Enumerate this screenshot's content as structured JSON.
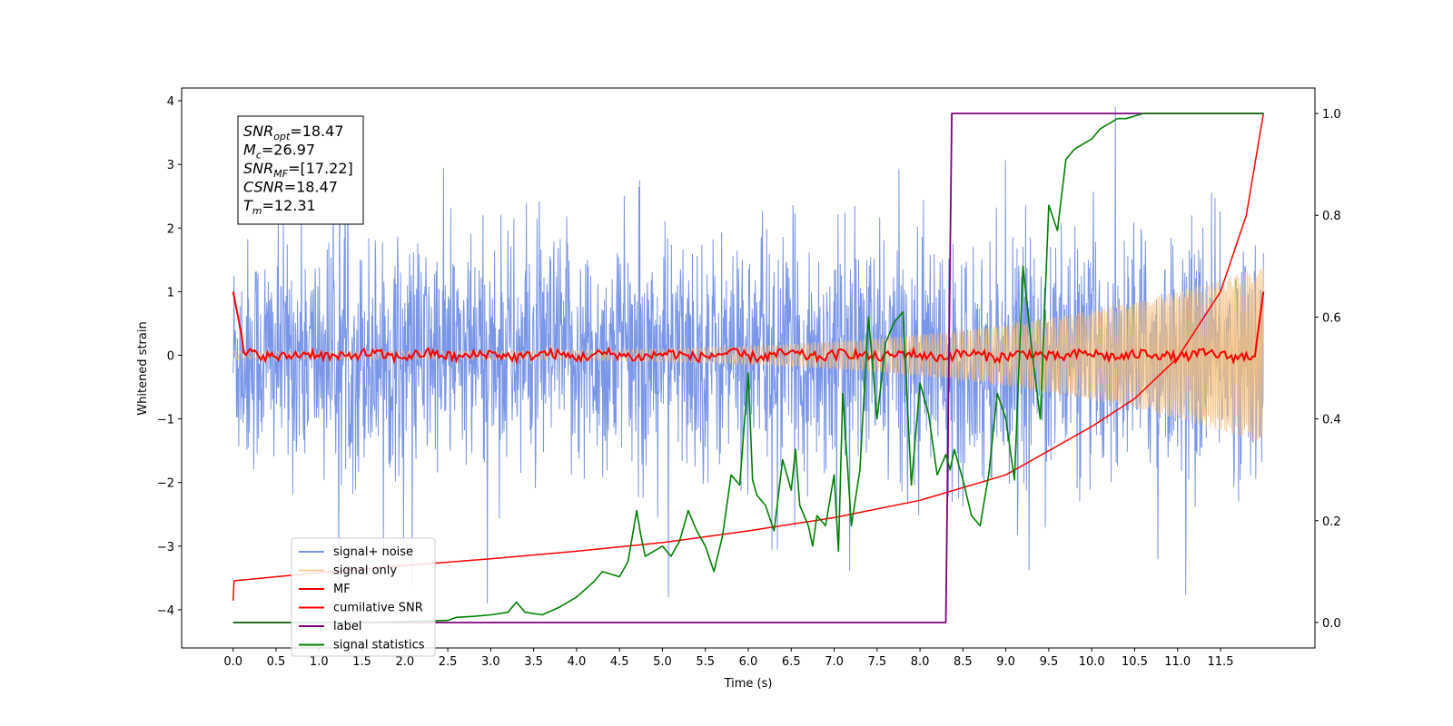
{
  "chart_data": {
    "type": "line",
    "xlabel": "Time (s)",
    "ylabel": "Whitened strain",
    "xlim": [
      -0.6,
      12.6
    ],
    "ylim": [
      -4.6,
      4.2
    ],
    "ylim_right": [
      -0.05,
      1.05
    ],
    "x_ticks": [
      "0.0",
      "0.5",
      "1.0",
      "1.5",
      "2.0",
      "2.5",
      "3.0",
      "3.5",
      "4.0",
      "4.5",
      "5.0",
      "5.5",
      "6.0",
      "6.5",
      "7.0",
      "7.5",
      "8.0",
      "8.5",
      "9.0",
      "9.5",
      "10.0",
      "10.5",
      "11.0",
      "11.5"
    ],
    "y_ticks_left": [
      "−4",
      "−3",
      "−2",
      "−1",
      "0",
      "1",
      "2",
      "3",
      "4"
    ],
    "y_ticks_right": [
      "0.0",
      "0.2",
      "0.4",
      "0.6",
      "0.8",
      "1.0"
    ],
    "grid": false,
    "legend_position": "lower-left",
    "stats_box": {
      "lines": [
        {
          "italic": "SNR",
          "sub": "opt",
          "rest": "=18.47"
        },
        {
          "italic": "M",
          "sub": "c",
          "rest": "=26.97"
        },
        {
          "italic": "SNR",
          "sub": "MF",
          "rest": "=[17.22]"
        },
        {
          "italic": "CSNR",
          "sub": "",
          "rest": "=18.47"
        },
        {
          "italic": "T",
          "sub": "m",
          "rest": "=12.31"
        }
      ]
    },
    "series": [
      {
        "name": "signal+ noise",
        "color": "#7a96e8",
        "axis": "left",
        "t_start": 0.0,
        "t_end": 12.0,
        "noise_std": 0.9
      },
      {
        "name": "signal only",
        "color": "#f5c07a",
        "axis": "left",
        "t_start": 0.0,
        "t_end": 12.0,
        "amp_start": 0.06,
        "amp_end": 1.4
      },
      {
        "name": "MF",
        "color": "#ff0000",
        "axis": "left",
        "t_start": 0.0,
        "t_end": 12.0,
        "start_value": 1.0,
        "baseline": 0.0,
        "end_value": 1.0
      },
      {
        "name": "cumilative SNR",
        "color": "#ff0000",
        "axis": "right",
        "x": [
          0.0,
          0.01,
          1.0,
          2.0,
          3.0,
          4.0,
          5.0,
          6.0,
          7.0,
          8.0,
          9.0,
          10.0,
          10.5,
          11.0,
          11.5,
          11.8,
          11.95,
          12.0
        ],
        "y": [
          0.043,
          0.082,
          0.098,
          0.112,
          0.125,
          0.14,
          0.157,
          0.18,
          0.206,
          0.24,
          0.29,
          0.385,
          0.44,
          0.52,
          0.65,
          0.8,
          0.95,
          1.0
        ]
      },
      {
        "name": "label",
        "color": "#800080",
        "axis": "right",
        "x": [
          0.0,
          8.3,
          8.37,
          12.0
        ],
        "y": [
          0.0,
          0.0,
          1.0,
          1.0
        ]
      },
      {
        "name": "signal statistics",
        "color": "#008000",
        "axis": "right",
        "x": [
          0.0,
          0.5,
          1.0,
          1.5,
          2.0,
          2.5,
          2.6,
          2.8,
          3.0,
          3.2,
          3.3,
          3.4,
          3.6,
          3.8,
          4.0,
          4.2,
          4.3,
          4.5,
          4.6,
          4.7,
          4.75,
          4.8,
          5.0,
          5.1,
          5.2,
          5.3,
          5.4,
          5.5,
          5.6,
          5.7,
          5.8,
          5.9,
          6.0,
          6.05,
          6.1,
          6.2,
          6.3,
          6.4,
          6.5,
          6.55,
          6.6,
          6.7,
          6.75,
          6.8,
          6.9,
          7.0,
          7.05,
          7.1,
          7.2,
          7.3,
          7.35,
          7.4,
          7.5,
          7.6,
          7.7,
          7.8,
          7.9,
          8.0,
          8.1,
          8.2,
          8.3,
          8.35,
          8.4,
          8.5,
          8.6,
          8.7,
          8.8,
          8.9,
          9.0,
          9.1,
          9.2,
          9.3,
          9.4,
          9.5,
          9.6,
          9.7,
          9.8,
          9.9,
          10.0,
          10.1,
          10.2,
          10.3,
          10.4,
          10.5,
          10.6,
          10.8,
          11.0,
          11.5,
          12.0
        ],
        "y": [
          0.0,
          0.0,
          0.0,
          0.0,
          0.002,
          0.004,
          0.01,
          0.012,
          0.015,
          0.02,
          0.04,
          0.02,
          0.015,
          0.03,
          0.05,
          0.08,
          0.1,
          0.09,
          0.12,
          0.22,
          0.17,
          0.13,
          0.15,
          0.13,
          0.16,
          0.22,
          0.18,
          0.15,
          0.1,
          0.17,
          0.29,
          0.27,
          0.49,
          0.28,
          0.25,
          0.23,
          0.18,
          0.32,
          0.26,
          0.34,
          0.23,
          0.19,
          0.15,
          0.21,
          0.19,
          0.29,
          0.14,
          0.45,
          0.19,
          0.3,
          0.45,
          0.6,
          0.4,
          0.55,
          0.59,
          0.61,
          0.27,
          0.47,
          0.41,
          0.29,
          0.33,
          0.3,
          0.34,
          0.28,
          0.21,
          0.19,
          0.29,
          0.45,
          0.4,
          0.28,
          0.7,
          0.54,
          0.4,
          0.82,
          0.77,
          0.91,
          0.93,
          0.94,
          0.95,
          0.97,
          0.98,
          0.99,
          0.99,
          0.995,
          1.0,
          1.0,
          1.0,
          1.0,
          1.0
        ]
      }
    ]
  }
}
